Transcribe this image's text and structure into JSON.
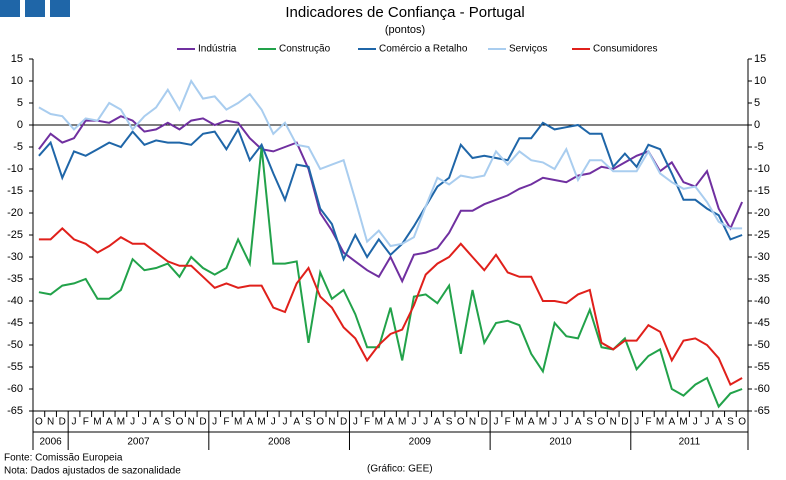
{
  "chart_data": {
    "type": "line",
    "title": "Indicadores de Confiança - Portugal",
    "subtitle": "(pontos)",
    "categories": [
      "O",
      "N",
      "D",
      "J",
      "F",
      "M",
      "A",
      "M",
      "J",
      "J",
      "A",
      "S",
      "O",
      "N",
      "D",
      "J",
      "F",
      "M",
      "A",
      "M",
      "J",
      "J",
      "A",
      "S",
      "O",
      "N",
      "D",
      "J",
      "F",
      "M",
      "A",
      "M",
      "J",
      "J",
      "A",
      "S",
      "O",
      "N",
      "D",
      "J",
      "F",
      "M",
      "A",
      "M",
      "J",
      "J",
      "A",
      "S",
      "O",
      "N",
      "D",
      "J",
      "F",
      "M",
      "A",
      "M",
      "J",
      "J",
      "A",
      "S",
      "O"
    ],
    "years": [
      "2006",
      "2007",
      "2008",
      "2009",
      "2010",
      "2011"
    ],
    "series": [
      {
        "name": "Indústria",
        "color": "#7030a0",
        "values": [
          -5.5,
          -2,
          -4,
          -3,
          1,
          1,
          0.5,
          2,
          1,
          -1.5,
          -1,
          0.5,
          -1,
          1,
          1.5,
          0,
          1,
          0.5,
          -3,
          -5.5,
          -6,
          -5,
          -4,
          -10,
          -20,
          -24,
          -29,
          -31,
          -33,
          -34.5,
          -30,
          -35.5,
          -29.5,
          -29,
          -28,
          -24.5,
          -19.5,
          -19.5,
          -18,
          -17,
          -16,
          -14.5,
          -13.5,
          -12,
          -12.5,
          -13,
          -11.5,
          -11,
          -9.5,
          -10,
          -8.5,
          -7,
          -6,
          -10.5,
          -8.5,
          -13,
          -14,
          -10.5,
          -19,
          -23.5,
          -17.5
        ]
      },
      {
        "name": "Construção",
        "color": "#22a24a",
        "values": [
          -38,
          -38.5,
          -36.5,
          -36,
          -35,
          -39.5,
          -39.5,
          -37.5,
          -30.5,
          -33,
          -32.5,
          -31.5,
          -34.5,
          -30,
          -32.5,
          -34,
          -32.5,
          -26,
          -31.5,
          -5,
          -31.5,
          -31.5,
          -31,
          -49.5,
          -33.5,
          -39.5,
          -37.5,
          -43,
          -50.5,
          -50.5,
          -41.5,
          -53.5,
          -39,
          -38.5,
          -40.5,
          -36.5,
          -52,
          -37.5,
          -49.5,
          -45,
          -44.5,
          -45.5,
          -52,
          -56,
          -45,
          -48,
          -48.5,
          -42,
          -50.5,
          -51,
          -48.5,
          -55.5,
          -52.5,
          -51,
          -60,
          -61.5,
          -59,
          -57.5,
          -64,
          -61,
          -60
        ]
      },
      {
        "name": "Comércio a Retalho",
        "color": "#1f66a8",
        "values": [
          -7,
          -4,
          -12,
          -6,
          -7,
          -5.5,
          -4,
          -5,
          -1.5,
          -4.5,
          -3.5,
          -4,
          -4,
          -4.5,
          -2,
          -1.5,
          -5.5,
          -1,
          -8,
          -4.5,
          -11,
          -17,
          -9,
          -9.5,
          -19,
          -22.5,
          -30.5,
          -25,
          -30,
          -26,
          -29.5,
          -27,
          -23,
          -18.5,
          -14,
          -12,
          -4.5,
          -7.5,
          -7,
          -7.5,
          -8,
          -3,
          -3,
          0.5,
          -1,
          -0.5,
          0,
          -2,
          -2,
          -9.5,
          -6.5,
          -9.5,
          -4.5,
          -5.5,
          -11,
          -17,
          -17,
          -19,
          -20.5,
          -26,
          -25
        ]
      },
      {
        "name": "Serviços",
        "color": "#a9cdef",
        "values": [
          4,
          2.5,
          2,
          -1,
          1.5,
          1,
          5,
          3.5,
          -1,
          2,
          4,
          8,
          3.5,
          10,
          6,
          6.5,
          3.5,
          5,
          7,
          3.5,
          -2,
          0.5,
          -4.5,
          -5,
          -10,
          -9,
          -8,
          -17,
          -26.5,
          -24,
          -27.5,
          -27,
          -25.5,
          -18.5,
          -12,
          -13.5,
          -11.5,
          -12,
          -11.5,
          -6,
          -9,
          -6,
          -8,
          -8.5,
          -10,
          -5.5,
          -12.5,
          -8,
          -8,
          -10.5,
          -10.5,
          -10.5,
          -6,
          -11,
          -13,
          -14.5,
          -14,
          -17.5,
          -22,
          -23.5,
          -23.5
        ]
      },
      {
        "name": "Consumidores",
        "color": "#e0201b",
        "values": [
          -26,
          -26,
          -23.5,
          -26,
          -27,
          -29,
          -27.5,
          -25.5,
          -27,
          -27,
          -29,
          -31,
          -32,
          -32,
          -34.5,
          -37,
          -36,
          -37,
          -36.5,
          -36.5,
          -41.5,
          -42.5,
          -36,
          -32.5,
          -39,
          -41.5,
          -46,
          -48.5,
          -53.5,
          -50,
          -47.5,
          -46.5,
          -41,
          -34,
          -31.5,
          -30,
          -27,
          -30,
          -33,
          -29.5,
          -33.5,
          -34.5,
          -34.5,
          -40,
          -40,
          -40.5,
          -38.5,
          -37.5,
          -49.5,
          -51,
          -49,
          -49,
          -45.5,
          -47,
          -53.5,
          -49,
          -48.5,
          -50,
          -53,
          -59,
          -57.5
        ]
      }
    ],
    "ylim": [
      -65,
      15
    ],
    "yticks": [
      15,
      10,
      5,
      0,
      -5,
      -10,
      -15,
      -20,
      -25,
      -30,
      -35,
      -40,
      -45,
      -50,
      -55,
      -60,
      -65
    ],
    "y2lim": [
      -65,
      15
    ],
    "y2ticks": [
      15,
      10,
      5,
      0,
      -5,
      -10,
      -15,
      -20,
      -25,
      -30,
      -35,
      -40,
      -45,
      -50,
      -55,
      -60,
      -65
    ],
    "notes": [
      "Fonte: Comissão Europeia",
      "Nota: Dados ajustados de sazonalidade"
    ],
    "credit": "(Gráfico: GEE)"
  }
}
